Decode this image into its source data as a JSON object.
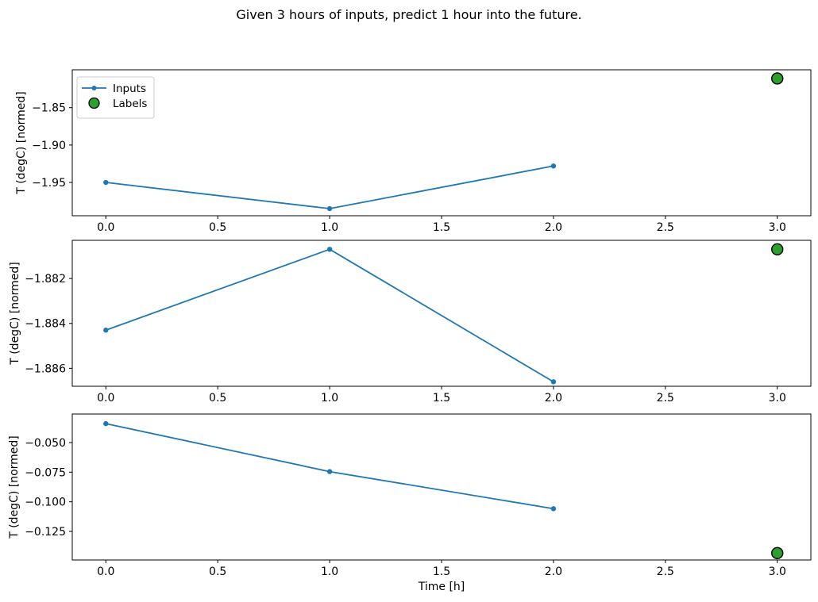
{
  "figure": {
    "title": "Given 3 hours of inputs, predict 1 hour into the future.",
    "background": "#ffffff"
  },
  "colors": {
    "inputs_line": "#1f77b4",
    "labels_fill": "#2ca02c",
    "labels_edge": "#000000",
    "axis": "#000000",
    "legend_border": "#cccccc"
  },
  "chart_data": [
    {
      "type": "line",
      "ylabel": "T (degC) [normed]",
      "xlabel": "",
      "xlim": [
        -0.15,
        3.15
      ],
      "ylim": [
        -1.9945,
        -1.7994
      ],
      "grid": false,
      "x_ticks": {
        "values": [
          0.0,
          0.5,
          1.0,
          1.5,
          2.0,
          2.5,
          3.0
        ],
        "labels": [
          "0.0",
          "0.5",
          "1.0",
          "1.5",
          "2.0",
          "2.5",
          "3.0"
        ]
      },
      "y_ticks": {
        "values": [
          -1.85,
          -1.9,
          -1.95
        ],
        "labels": [
          "−1.85",
          "−1.90",
          "−1.95"
        ]
      },
      "series": [
        {
          "name": "Inputs",
          "type": "line",
          "marker": "dot",
          "color": "#1f77b4",
          "x": [
            0,
            1,
            2
          ],
          "y": [
            -1.95,
            -1.985,
            -1.928
          ]
        },
        {
          "name": "Labels",
          "type": "scatter",
          "marker": "circle",
          "color": "#2ca02c",
          "edge_color": "#000000",
          "x": [
            3
          ],
          "y": [
            -1.811
          ]
        }
      ],
      "legend": {
        "show": true,
        "position": "upper left",
        "entries": [
          {
            "label": "Inputs",
            "marker": "line-dot",
            "color": "#1f77b4"
          },
          {
            "label": "Labels",
            "marker": "circle",
            "color": "#2ca02c",
            "edge_color": "#000000"
          }
        ]
      }
    },
    {
      "type": "line",
      "ylabel": "T (degC) [normed]",
      "xlabel": "",
      "xlim": [
        -0.15,
        3.15
      ],
      "ylim": [
        -1.8868,
        -1.8803
      ],
      "grid": false,
      "x_ticks": {
        "values": [
          0.0,
          0.5,
          1.0,
          1.5,
          2.0,
          2.5,
          3.0
        ],
        "labels": [
          "0.0",
          "0.5",
          "1.0",
          "1.5",
          "2.0",
          "2.5",
          "3.0"
        ]
      },
      "y_ticks": {
        "values": [
          -1.882,
          -1.884,
          -1.886
        ],
        "labels": [
          "−1.882",
          "−1.884",
          "−1.886"
        ]
      },
      "series": [
        {
          "name": "Inputs",
          "type": "line",
          "marker": "dot",
          "color": "#1f77b4",
          "x": [
            0,
            1,
            2
          ],
          "y": [
            -1.8843,
            -1.8807,
            -1.8866
          ]
        },
        {
          "name": "Labels",
          "type": "scatter",
          "marker": "circle",
          "color": "#2ca02c",
          "edge_color": "#000000",
          "x": [
            3
          ],
          "y": [
            -1.8807
          ]
        }
      ],
      "legend": {
        "show": false,
        "entries": []
      }
    },
    {
      "type": "line",
      "ylabel": "T (degC) [normed]",
      "xlabel": "Time [h]",
      "xlim": [
        -0.15,
        3.15
      ],
      "ylim": [
        -0.1491,
        -0.0259
      ],
      "grid": false,
      "x_ticks": {
        "values": [
          0.0,
          0.5,
          1.0,
          1.5,
          2.0,
          2.5,
          3.0
        ],
        "labels": [
          "0.0",
          "0.5",
          "1.0",
          "1.5",
          "2.0",
          "2.5",
          "3.0"
        ]
      },
      "y_ticks": {
        "values": [
          -0.05,
          -0.075,
          -0.1,
          -0.125
        ],
        "labels": [
          "−0.050",
          "−0.075",
          "−0.100",
          "−0.125"
        ]
      },
      "series": [
        {
          "name": "Inputs",
          "type": "line",
          "marker": "dot",
          "color": "#1f77b4",
          "x": [
            0,
            1,
            2
          ],
          "y": [
            -0.034,
            -0.0745,
            -0.1058
          ]
        },
        {
          "name": "Labels",
          "type": "scatter",
          "marker": "circle",
          "color": "#2ca02c",
          "edge_color": "#000000",
          "x": [
            3
          ],
          "y": [
            -0.1433
          ]
        }
      ],
      "legend": {
        "show": false,
        "entries": []
      }
    }
  ]
}
